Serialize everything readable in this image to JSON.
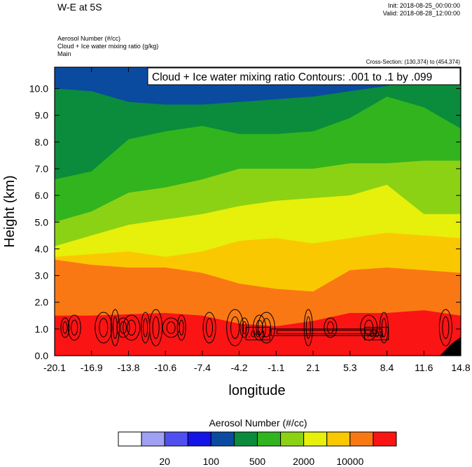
{
  "header": {
    "title": "W-E at 5S",
    "init": "Init: 2018-08-25_00:00:00",
    "valid": "Valid: 2018-08-28_12:00:00",
    "subtitle_lines": [
      "Aerosol Number   (#/cc)",
      "Cloud + Ice water mixing ratio   (g/kg)",
      "Main"
    ],
    "cross_section": "Cross-Section: (130,374) to (454,374)"
  },
  "chart_data": {
    "type": "heatmap",
    "title": "W-E at 5S",
    "xlabel": "longitude",
    "ylabel": "Height (km)",
    "xlim": [
      -20.1,
      14.8
    ],
    "ylim": [
      0.0,
      10.8
    ],
    "x_ticks": [
      "-20.1",
      "-16.9",
      "-13.8",
      "-10.6",
      "-7.4",
      "-4.2",
      "-1.1",
      "2.1",
      "5.3",
      "8.4",
      "11.6",
      "14.8"
    ],
    "y_ticks": [
      "0.0",
      "1.0",
      "2.0",
      "3.0",
      "4.0",
      "5.0",
      "6.0",
      "7.0",
      "8.0",
      "9.0",
      "10.0"
    ],
    "contour_annotation": "Cloud + Ice water mixing ratio Contours: .001 to .1 by .099",
    "contour_labels": [
      ".001",
      ".001"
    ],
    "colorbar": {
      "title": "Aerosol Number  (#/cc)",
      "tick_labels": [
        "20",
        "100",
        "500",
        "2000",
        "10000"
      ],
      "colors": [
        "#ffffff",
        "#a0a0f5",
        "#5050f0",
        "#1414e6",
        "#0a4ba0",
        "#0a8c3c",
        "#32b41e",
        "#8cd214",
        "#e6f00a",
        "#fac800",
        "#fa7814",
        "#fa1414"
      ]
    },
    "layers": [
      {
        "level": 11,
        "top_km": [
          1.5,
          1.5,
          1.55,
          1.6,
          1.5,
          1.2,
          1.1,
          1.3,
          1.6,
          1.6,
          1.7,
          1.5
        ]
      },
      {
        "level": 10,
        "top_km": [
          3.6,
          3.4,
          3.3,
          3.3,
          3.1,
          2.7,
          2.5,
          2.4,
          3.2,
          3.3,
          3.2,
          3.1
        ]
      },
      {
        "level": 9,
        "top_km": [
          3.7,
          3.8,
          3.9,
          3.7,
          3.9,
          4.3,
          4.4,
          4.2,
          4.4,
          4.6,
          4.5,
          4.4
        ]
      },
      {
        "level": 8,
        "top_km": [
          4.1,
          4.5,
          4.9,
          5.1,
          5.3,
          5.6,
          5.8,
          5.9,
          6.0,
          6.4,
          5.3,
          5.3
        ]
      },
      {
        "level": 7,
        "top_km": [
          5.0,
          5.4,
          6.1,
          6.3,
          6.6,
          7.0,
          7.0,
          7.0,
          7.2,
          7.2,
          7.3,
          7.3
        ]
      },
      {
        "level": 6,
        "top_km": [
          6.6,
          6.9,
          8.1,
          8.4,
          8.6,
          8.3,
          8.3,
          8.4,
          8.9,
          9.7,
          9.3,
          8.5
        ]
      },
      {
        "level": 5,
        "top_km": [
          10.0,
          9.9,
          9.5,
          9.4,
          9.4,
          9.5,
          9.6,
          9.7,
          9.9,
          10.1,
          10.4,
          10.5
        ]
      },
      {
        "level": 4,
        "top_km": [
          10.8,
          10.8,
          10.8,
          10.8,
          10.8,
          10.8,
          10.8,
          10.8,
          10.8,
          10.8,
          10.8,
          10.8
        ]
      }
    ],
    "base_level": 9
  }
}
